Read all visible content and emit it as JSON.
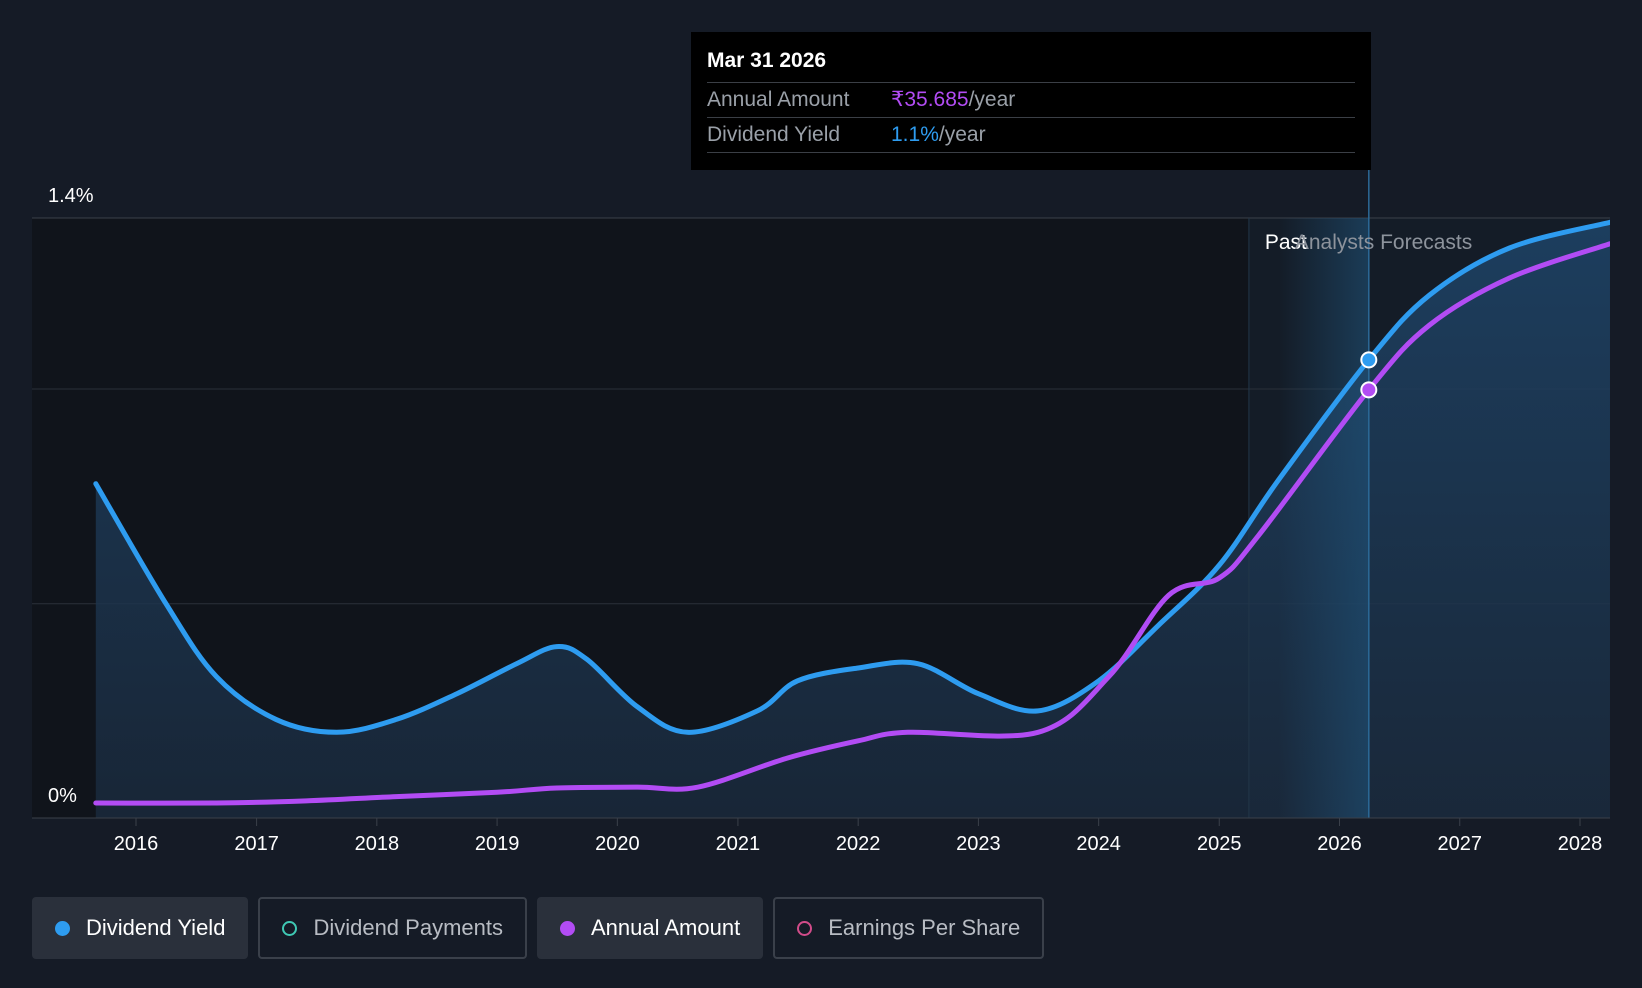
{
  "chart_data": {
    "type": "line",
    "x_axis": {
      "type": "date",
      "ticks": [
        "2016",
        "2017",
        "2018",
        "2019",
        "2020",
        "2021",
        "2022",
        "2023",
        "2024",
        "2025",
        "2026",
        "2027",
        "2028"
      ]
    },
    "y_axis": {
      "ticks": [
        "0%",
        "1.4%"
      ],
      "ylim": [
        0,
        1.4
      ],
      "grid": true
    },
    "regions": {
      "past_label": "Past",
      "forecast_label": "Analysts Forecasts"
    },
    "series": [
      {
        "name": "Dividend Yield",
        "color": "#2e9cf0",
        "area": true,
        "points": [
          [
            "2015-09-01",
            0.78
          ],
          [
            "2016-04-01",
            0.5
          ],
          [
            "2016-09-01",
            0.33
          ],
          [
            "2017-03-01",
            0.23
          ],
          [
            "2017-09-01",
            0.2
          ],
          [
            "2018-03-01",
            0.23
          ],
          [
            "2018-09-01",
            0.29
          ],
          [
            "2019-03-01",
            0.36
          ],
          [
            "2019-07-01",
            0.4
          ],
          [
            "2019-10-01",
            0.37
          ],
          [
            "2020-03-01",
            0.26
          ],
          [
            "2020-08-01",
            0.2
          ],
          [
            "2021-03-01",
            0.25
          ],
          [
            "2021-07-01",
            0.32
          ],
          [
            "2022-01-01",
            0.35
          ],
          [
            "2022-07-01",
            0.36
          ],
          [
            "2023-01-01",
            0.29
          ],
          [
            "2023-07-01",
            0.25
          ],
          [
            "2024-01-01",
            0.32
          ],
          [
            "2024-07-01",
            0.45
          ],
          [
            "2025-01-01",
            0.59
          ],
          [
            "2025-07-01",
            0.79
          ],
          [
            "2026-04-01",
            1.07
          ],
          [
            "2026-10-01",
            1.22
          ],
          [
            "2027-06-01",
            1.33
          ],
          [
            "2028-04-01",
            1.39
          ]
        ]
      },
      {
        "name": "Annual Amount",
        "color": "#b24cf4",
        "area": false,
        "points": [
          [
            "2015-09-01",
            0.035
          ],
          [
            "2016-09-01",
            0.035
          ],
          [
            "2017-06-01",
            0.04
          ],
          [
            "2018-03-01",
            0.05
          ],
          [
            "2019-01-01",
            0.06
          ],
          [
            "2019-07-01",
            0.07
          ],
          [
            "2020-03-01",
            0.072
          ],
          [
            "2020-09-01",
            0.072
          ],
          [
            "2021-06-01",
            0.14
          ],
          [
            "2022-01-01",
            0.18
          ],
          [
            "2022-06-01",
            0.2
          ],
          [
            "2023-07-01",
            0.2
          ],
          [
            "2024-02-01",
            0.33
          ],
          [
            "2024-08-01",
            0.52
          ],
          [
            "2025-01-01",
            0.56
          ],
          [
            "2025-05-01",
            0.66
          ],
          [
            "2026-04-01",
            1.0
          ],
          [
            "2026-10-01",
            1.15
          ],
          [
            "2027-06-01",
            1.26
          ],
          [
            "2028-04-01",
            1.34
          ]
        ]
      }
    ],
    "highlight": {
      "date": "2026-03-31"
    }
  },
  "tooltip": {
    "date": "Mar 31 2026",
    "rows": [
      {
        "key": "Annual Amount",
        "value": "₹35.685",
        "unit": "/year"
      },
      {
        "key": "Dividend Yield",
        "value": "1.1%",
        "unit": "/year"
      }
    ]
  },
  "legend": [
    {
      "label": "Dividend Yield",
      "active": true,
      "color": "#2e9cf0"
    },
    {
      "label": "Dividend Payments",
      "active": false,
      "color": "#3fc9b4"
    },
    {
      "label": "Annual Amount",
      "active": true,
      "color": "#b24cf4"
    },
    {
      "label": "Earnings Per Share",
      "active": false,
      "color": "#d24c8a"
    }
  ]
}
